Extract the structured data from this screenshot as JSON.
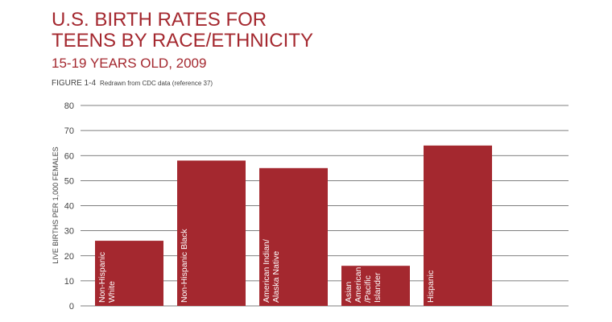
{
  "chart_data": {
    "type": "bar",
    "title": [
      "U.S. BIRTH RATES FOR",
      "TEENS BY RACE/ETHNICITY"
    ],
    "subtitle": "15-19 YEARS OLD, 2009",
    "figure_label": "FIGURE 1-4",
    "note": "Redrawn from CDC data (reference 37)",
    "y_label": "LIVE BIRTHS PER 1,000 FEMALES",
    "categories": [
      [
        "Non-Hispanic",
        "White"
      ],
      [
        "Non-Hispanic Black"
      ],
      [
        "American Indian/",
        "Alaska Native"
      ],
      [
        "Asian",
        "American",
        "/Pacific",
        "Islander"
      ],
      [
        "Hispanic"
      ]
    ],
    "values": [
      26,
      58,
      55,
      16,
      64
    ],
    "color": "#a4282f",
    "ylim": [
      0,
      80
    ],
    "yticks": [
      0,
      10,
      20,
      30,
      40,
      50,
      60,
      70,
      80
    ],
    "grid": true
  }
}
